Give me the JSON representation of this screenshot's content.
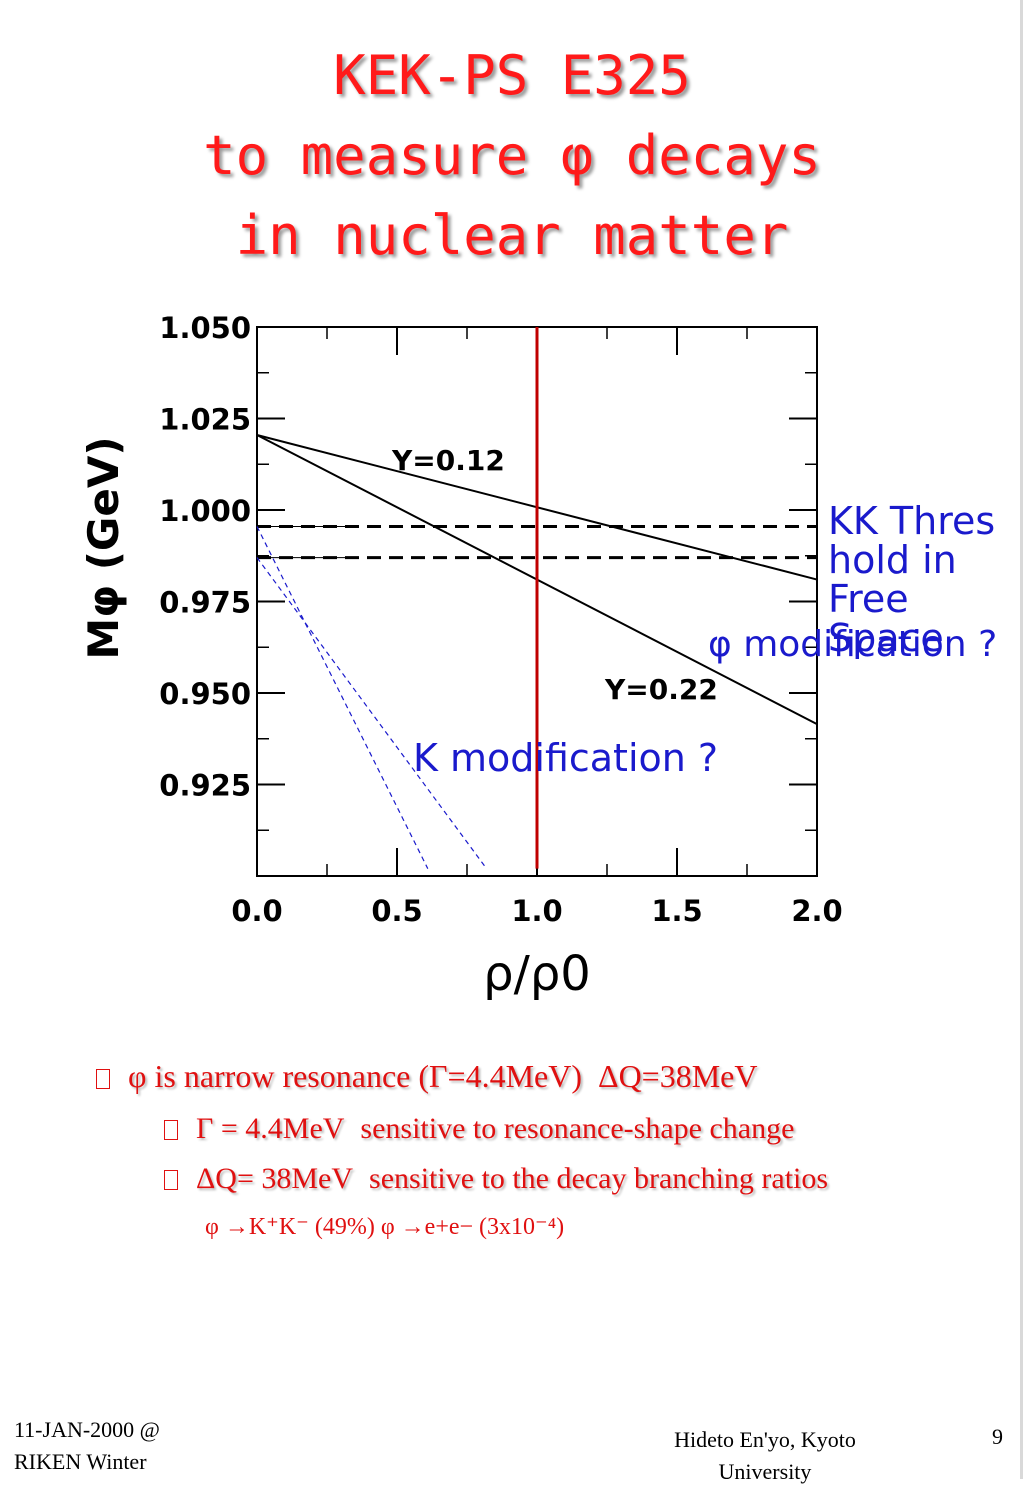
{
  "title": {
    "line1": "KEK-PS E325",
    "line2": "to measure φ decays",
    "line3": "in nuclear matter"
  },
  "colors": {
    "title": "#ff1a1a",
    "annotation": "#1a1acc",
    "vertical_line": "#c00000",
    "bullets": "#e01010"
  },
  "chart_data": {
    "type": "line",
    "xlabel": "ρ/ρ0",
    "ylabel": "Mφ (GeV)",
    "xlim": [
      0.0,
      2.0
    ],
    "ylim": [
      0.9,
      1.05
    ],
    "x_ticks": [
      "0.0",
      "0.5",
      "1.0",
      "1.5",
      "2.0"
    ],
    "y_ticks": [
      "1.050",
      "1.025",
      "1.000",
      "0.975",
      "0.950",
      "0.925"
    ],
    "series": [
      {
        "name": "Y=0.12",
        "x": [
          0.0,
          2.0
        ],
        "y": [
          1.0205,
          0.981
        ],
        "style": "solid",
        "color": "#000000"
      },
      {
        "name": "Y=0.22",
        "x": [
          0.0,
          2.0
        ],
        "y": [
          1.0205,
          0.9415
        ],
        "style": "solid",
        "color": "#000000"
      },
      {
        "name": "",
        "x": [
          0.0,
          2.0
        ],
        "y": [
          0.9955,
          0.9955
        ],
        "style": "dashed",
        "color": "#000000"
      },
      {
        "name": "",
        "x": [
          0.0,
          2.0
        ],
        "y": [
          0.987,
          0.987
        ],
        "style": "dashed",
        "color": "#000000"
      },
      {
        "name": "",
        "x": [
          0.0,
          0.61
        ],
        "y": [
          0.9955,
          0.902
        ],
        "style": "dashed-blue",
        "color": "#1a1acc"
      },
      {
        "name": "",
        "x": [
          0.0,
          0.82
        ],
        "y": [
          0.987,
          0.902
        ],
        "style": "dashed-blue",
        "color": "#1a1acc"
      },
      {
        "name": "",
        "x": [
          1.0,
          1.0
        ],
        "y": [
          1.05,
          0.902
        ],
        "style": "vertical",
        "color": "#c00000"
      }
    ],
    "annotations": [
      "Y=0.12",
      "Y=0.22"
    ],
    "grid": false
  },
  "annotations": {
    "kk_threshold": "KK Thres hold in Free Space",
    "phi_modification": "φ modification ?",
    "k_modification": "K modification ?"
  },
  "bullets": {
    "item1": {
      "text": "φ  is narrow resonance (Γ=4.4MeV)",
      "extra": "ΔQ=38MeV"
    },
    "item2": {
      "text": "Γ   = 4.4MeV",
      "extra": "sensitive to resonance-shape change"
    },
    "item3": {
      "text": "ΔQ= 38MeV",
      "extra": "sensitive to the decay branching ratios"
    },
    "item4": {
      "text": "φ →K⁺K⁻  (49%)   φ →e+e− (3x10⁻⁴)"
    }
  },
  "footer": {
    "left_line1": "11-JAN-2000 @",
    "left_line2": "RIKEN Winter",
    "center_line1": "Hideto En'yo, Kyoto",
    "center_line2": "University",
    "page_number": "9"
  }
}
